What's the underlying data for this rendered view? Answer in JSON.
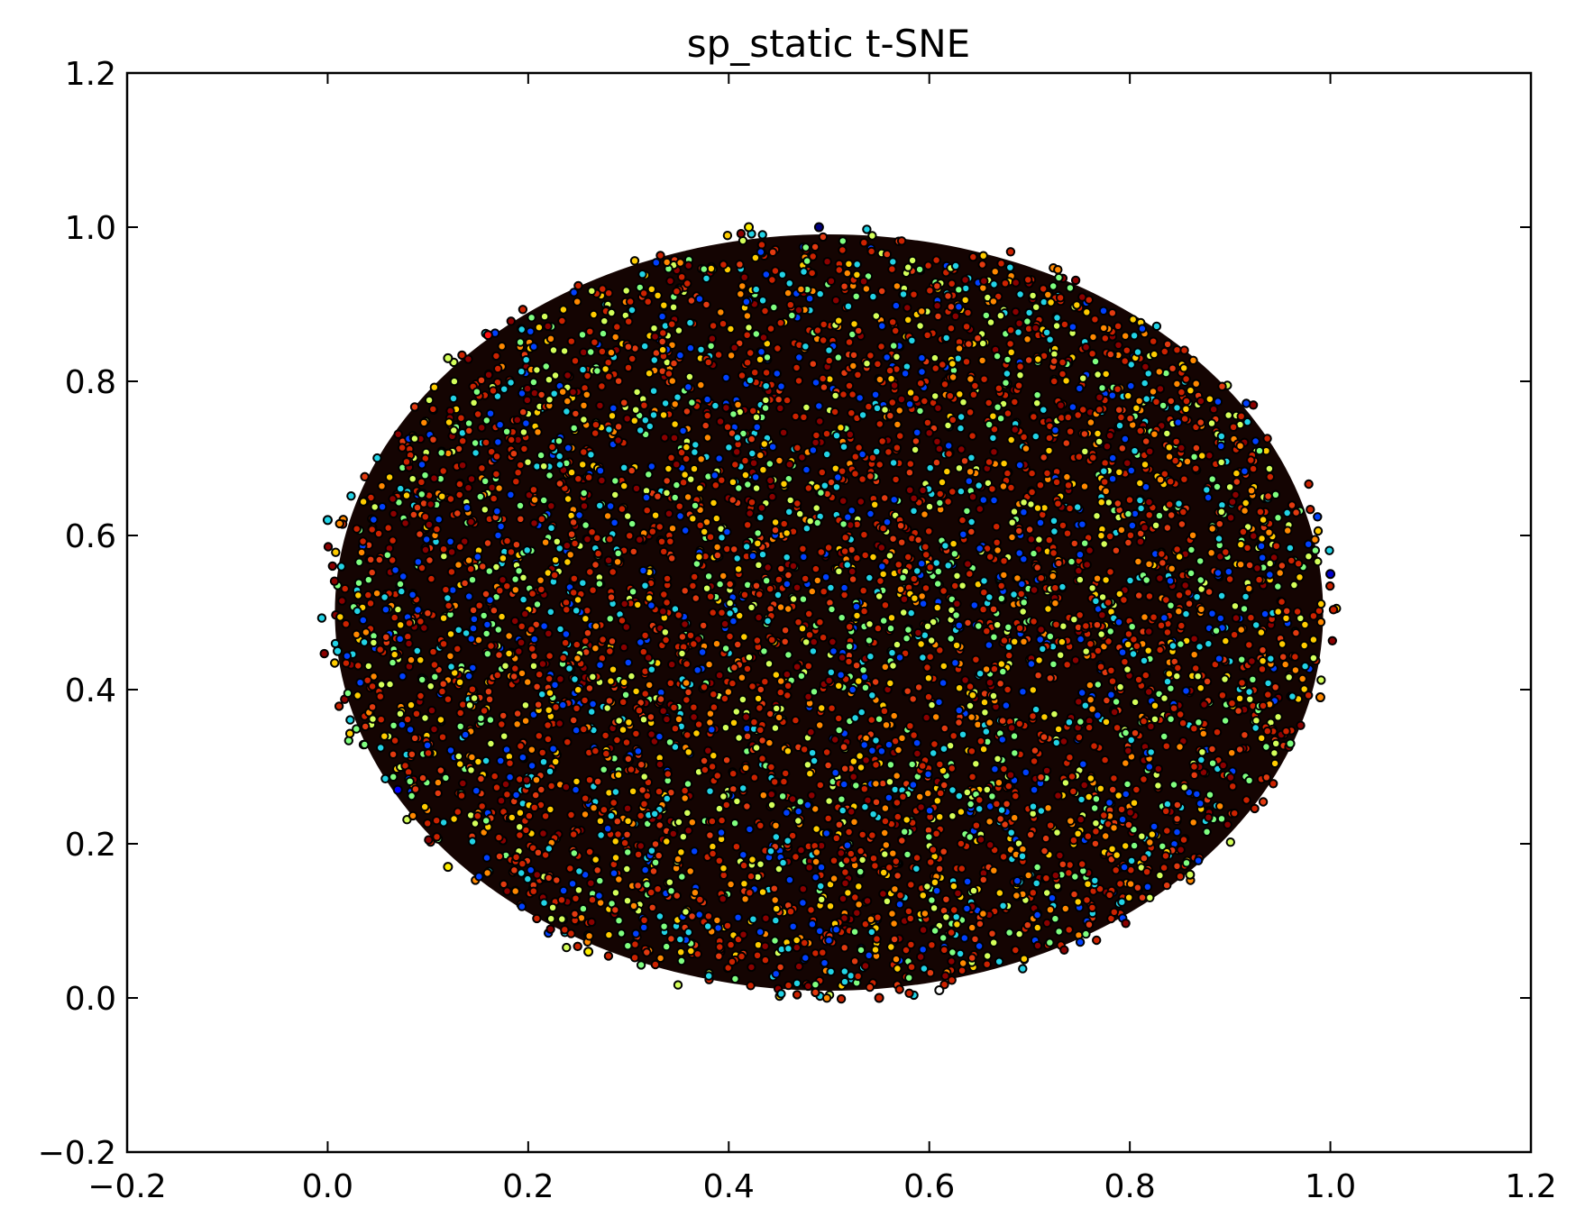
{
  "chart_data": {
    "type": "scatter",
    "title": "sp_static t-SNE",
    "xlabel": "",
    "ylabel": "",
    "xlim": [
      -0.2,
      1.2
    ],
    "ylim": [
      -0.2,
      1.2
    ],
    "xticks": [
      -0.2,
      0.0,
      0.2,
      0.4,
      0.6,
      0.8,
      1.0,
      1.2
    ],
    "yticks": [
      -0.2,
      0.0,
      0.2,
      0.4,
      0.6,
      0.8,
      1.0,
      1.2
    ],
    "xtick_labels": [
      "−0.2",
      "0.0",
      "0.2",
      "0.4",
      "0.6",
      "0.8",
      "1.0",
      "1.2"
    ],
    "ytick_labels": [
      "−0.2",
      "0.0",
      "0.2",
      "0.4",
      "0.6",
      "0.8",
      "1.0",
      "1.2"
    ],
    "grid": false,
    "legend": "none",
    "cloud": {
      "shape": "ellipse",
      "center": [
        0.5,
        0.5
      ],
      "x_extent": [
        0.0,
        1.0
      ],
      "y_extent": [
        0.0,
        1.0
      ],
      "colormap": "jet",
      "edge_color": "#000000",
      "dominant_fill": "#cc2200"
    },
    "points": [
      {
        "x": 0.0,
        "y": 0.62,
        "color": "#22d3e6"
      },
      {
        "x": 1.0,
        "y": 0.55,
        "color": "#0000cc"
      },
      {
        "x": 0.49,
        "y": 1.0,
        "color": "#000080"
      },
      {
        "x": 0.55,
        "y": 0.0,
        "color": "#cc2200"
      },
      {
        "x": 0.61,
        "y": 0.01,
        "color": "#ffffff"
      },
      {
        "x": 0.26,
        "y": 0.06,
        "color": "#ffee00"
      },
      {
        "x": 0.12,
        "y": 0.83,
        "color": "#d4ff5a"
      },
      {
        "x": 0.16,
        "y": 0.86,
        "color": "#ff1010"
      },
      {
        "x": 0.86,
        "y": 0.16,
        "color": "#d4ff5a"
      },
      {
        "x": 0.99,
        "y": 0.39,
        "color": "#ff8800"
      },
      {
        "x": 0.07,
        "y": 0.27,
        "color": "#0000ff"
      },
      {
        "x": 0.96,
        "y": 0.33,
        "color": "#80ff80"
      },
      {
        "x": 0.42,
        "y": 1.0,
        "color": "#ffee00"
      },
      {
        "x": 0.01,
        "y": 0.45,
        "color": "#22d3e6"
      },
      {
        "x": 0.12,
        "y": 0.17,
        "color": "#ffee00"
      }
    ]
  }
}
